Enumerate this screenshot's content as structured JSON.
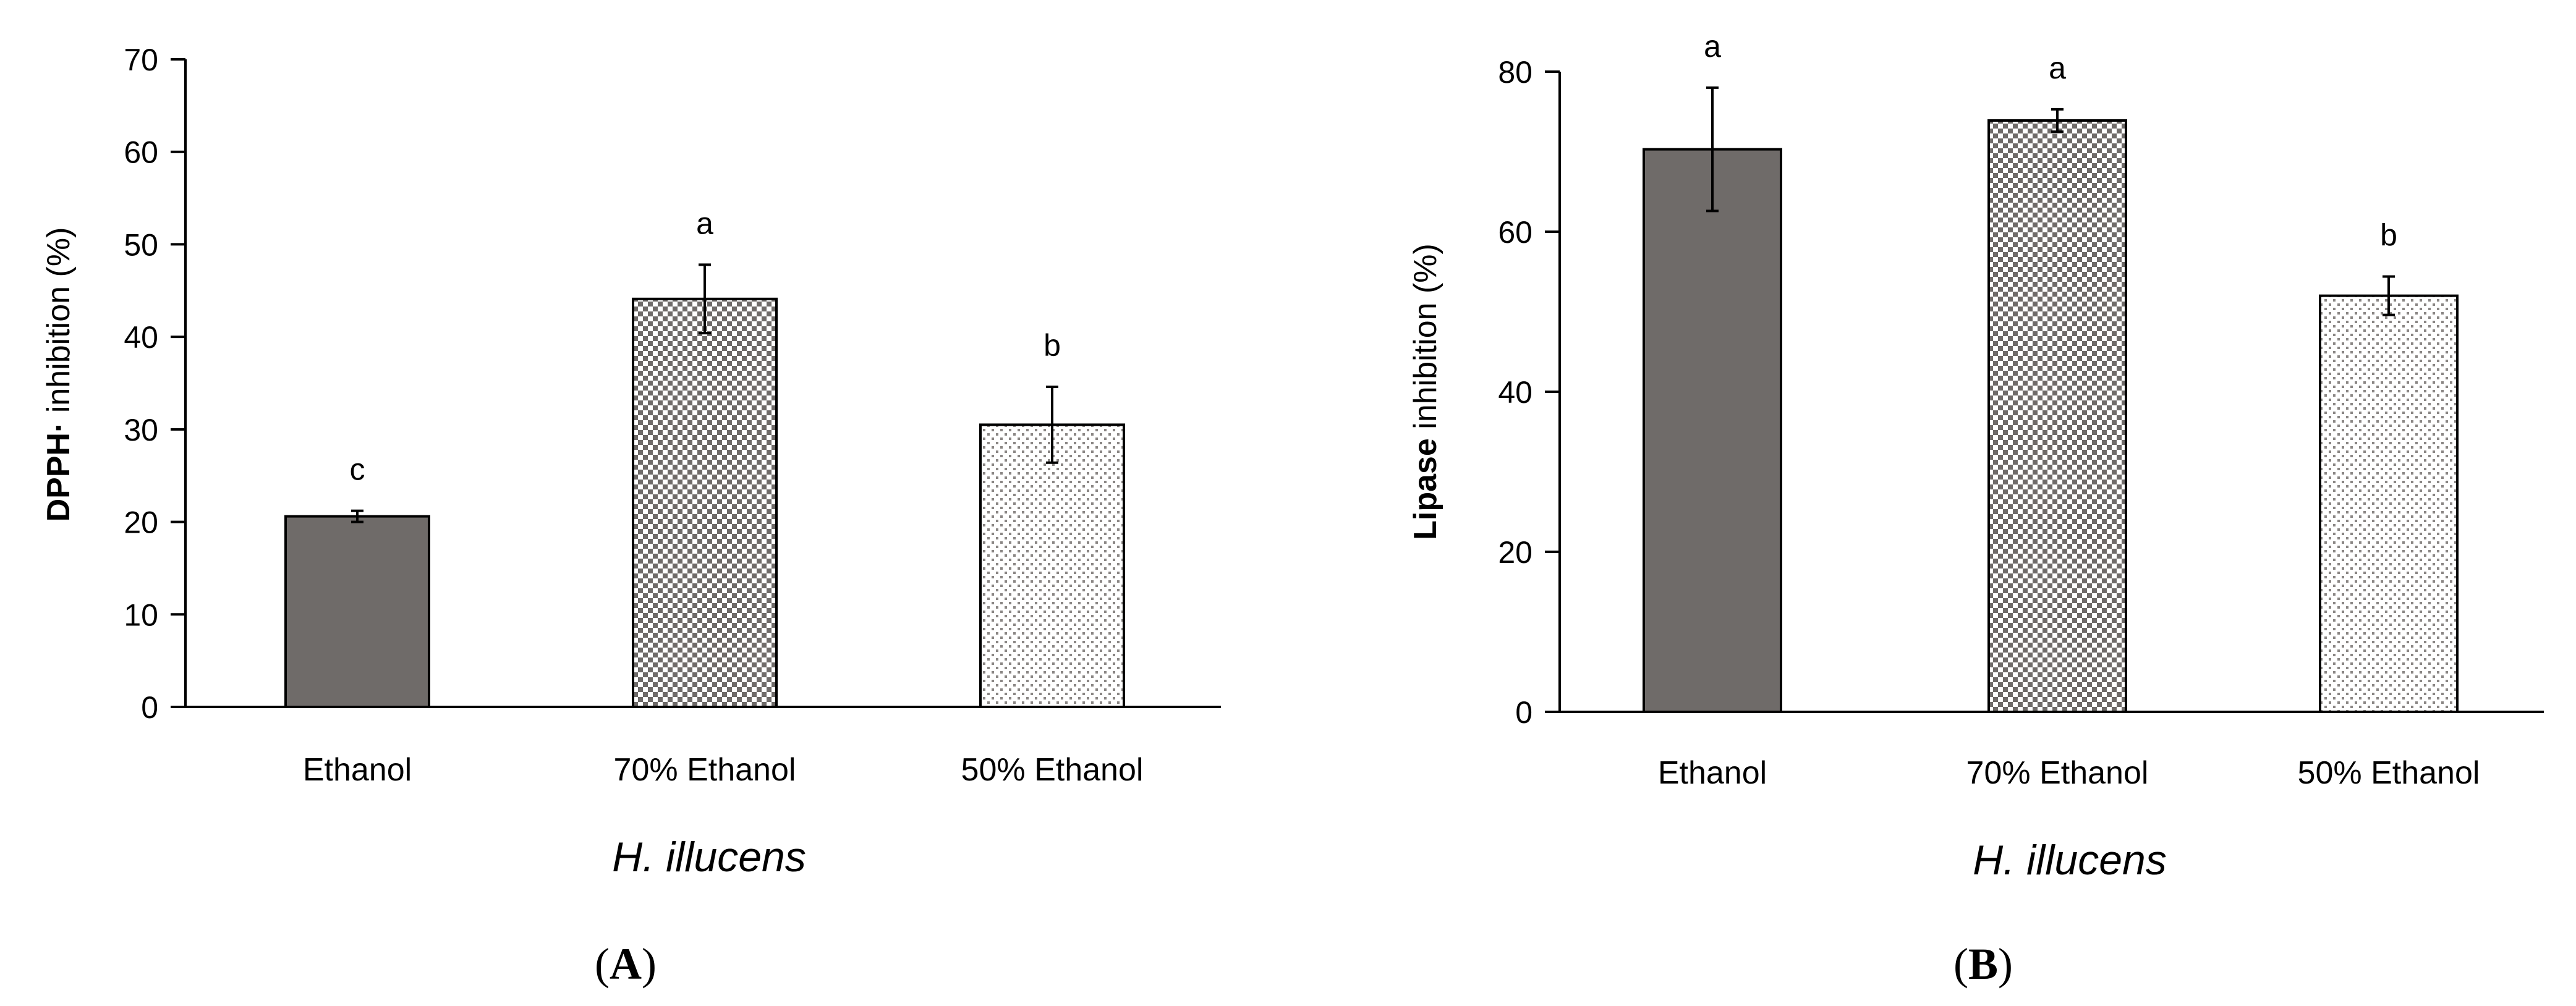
{
  "figure": {
    "panels": [
      "A",
      "B"
    ]
  },
  "colors": {
    "axis": "#000000",
    "solid_fill": "#6f6b69",
    "pattern_dark": "#6f6b69",
    "pattern_light": "#8a8684",
    "background": "#ffffff"
  },
  "chart_data": [
    {
      "type": "bar",
      "panel_label": "A",
      "title": "",
      "categories": [
        "Ethanol",
        "70% Ethanol",
        "50% Ethanol"
      ],
      "values": [
        20.6,
        44.1,
        30.5
      ],
      "errors": [
        0.6,
        3.7,
        4.1
      ],
      "significance": [
        "c",
        "a",
        "b"
      ],
      "fills": [
        "solid",
        "checker",
        "dots"
      ],
      "xlabel": "H. illucens",
      "ylabel_bold": "DPPH·",
      "ylabel_rest": " inhibition (%)",
      "ylim": [
        0,
        70
      ],
      "yticks": [
        0,
        10,
        20,
        30,
        40,
        50,
        60,
        70
      ],
      "grid": false,
      "legend": "none"
    },
    {
      "type": "bar",
      "panel_label": "B",
      "title": "",
      "categories": [
        "Ethanol",
        "70% Ethanol",
        "50% Ethanol"
      ],
      "values": [
        70.3,
        73.9,
        52.0
      ],
      "errors": [
        7.7,
        1.4,
        2.4
      ],
      "significance": [
        "a",
        "a",
        "b"
      ],
      "fills": [
        "solid",
        "checker",
        "dots"
      ],
      "xlabel": "H. illucens",
      "ylabel_bold": "Lipase",
      "ylabel_rest": " inhibition (%)",
      "ylim": [
        0,
        80
      ],
      "yticks": [
        0,
        20,
        40,
        60,
        80
      ],
      "grid": false,
      "legend": "none"
    }
  ]
}
